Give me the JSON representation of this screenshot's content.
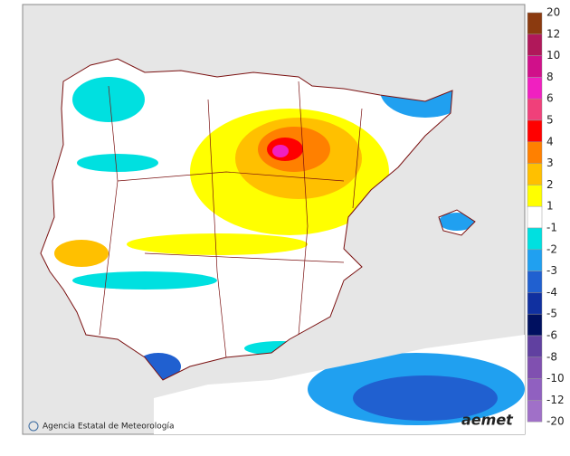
{
  "legend": {
    "labels": [
      "20",
      "12",
      "10",
      "8",
      "6",
      "5",
      "4",
      "3",
      "2",
      "1",
      "-1",
      "-2",
      "-3",
      "-4",
      "-5",
      "-6",
      "-8",
      "-10",
      "-12",
      "-20"
    ],
    "colors": [
      "#8b3a0f",
      "#b0185a",
      "#d0108a",
      "#f020c0",
      "#f0407a",
      "#ff0000",
      "#ff8000",
      "#ffc000",
      "#ffff00",
      "#ffffff",
      "#00e0e0",
      "#20a0f0",
      "#2060d0",
      "#1030a0",
      "#001060",
      "#6040a0",
      "#8050b0",
      "#9060c0",
      "#a070c8"
    ]
  },
  "credit": "Agencia Estatal de Meteorología",
  "logo": "aemet"
}
